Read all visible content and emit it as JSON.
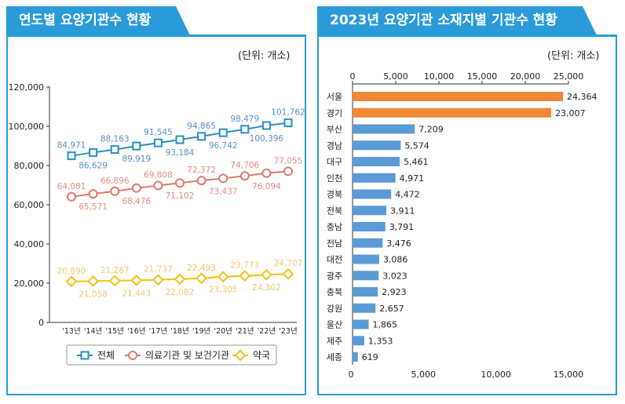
{
  "left": {
    "title": "연도별 요양기관수 현황",
    "unit": "(단위: 개소)"
  },
  "right": {
    "title": "2023년 요양기관 소재지별 기관수 현황",
    "unit": "(단위: 개소)"
  },
  "chart_data": [
    {
      "type": "line",
      "categories": [
        "'13년",
        "'14년",
        "'15년",
        "'16년",
        "'17년",
        "'18년",
        "'19년",
        "'20년",
        "'21년",
        "'22년",
        "'23년"
      ],
      "ylim": [
        0,
        120000
      ],
      "yticks": [
        "0",
        "20,000",
        "40,000",
        "60,000",
        "80,000",
        "100,000",
        "120,000"
      ],
      "legend": "bottom",
      "series": [
        {
          "name": "전체",
          "color": "#2a8fc4",
          "labelColor": "#5b8fc0",
          "marker": "square",
          "values": [
            84971,
            86629,
            88163,
            89919,
            91545,
            93184,
            94865,
            96742,
            98479,
            100396,
            101762
          ]
        },
        {
          "name": "의료기관 및 보건기관",
          "color": "#e07a6a",
          "labelColor": "#e38c80",
          "marker": "circle",
          "values": [
            64081,
            65571,
            66896,
            68476,
            69808,
            71102,
            72372,
            73437,
            74706,
            76094,
            77055
          ]
        },
        {
          "name": "약국",
          "color": "#f2c218",
          "labelColor": "#f0c870",
          "marker": "diamond",
          "values": [
            20890,
            21058,
            21267,
            21443,
            21737,
            22082,
            22493,
            23305,
            23773,
            24302,
            24707
          ]
        }
      ]
    },
    {
      "type": "bar",
      "orientation": "horizontal",
      "categories": [
        "서울",
        "경기",
        "부산",
        "경남",
        "대구",
        "인천",
        "경북",
        "전북",
        "충남",
        "전남",
        "대전",
        "광주",
        "충북",
        "강원",
        "울산",
        "제주",
        "세종"
      ],
      "values": [
        24364,
        23007,
        7209,
        5574,
        5461,
        4971,
        4472,
        3911,
        3791,
        3476,
        3086,
        3023,
        2923,
        2657,
        1865,
        1353,
        619
      ],
      "labels": [
        "24,364",
        "23,007",
        "7,209",
        "5,574",
        "5,461",
        "4,971",
        "4,472",
        "3,911",
        "3,791",
        "3,476",
        "3,086",
        "3,023",
        "2,923",
        "2,657",
        "1,865",
        "1,353",
        "619"
      ],
      "highlightColor": "#f0883a",
      "color": "#5b9bd5",
      "xlim": [
        0,
        25000
      ],
      "xticks_top": [
        "0",
        "5,000",
        "10,000",
        "15,000",
        "20,000",
        "25,000"
      ],
      "xticks_bottom": [
        "0",
        "5,000",
        "10,000",
        "15,000"
      ]
    }
  ]
}
